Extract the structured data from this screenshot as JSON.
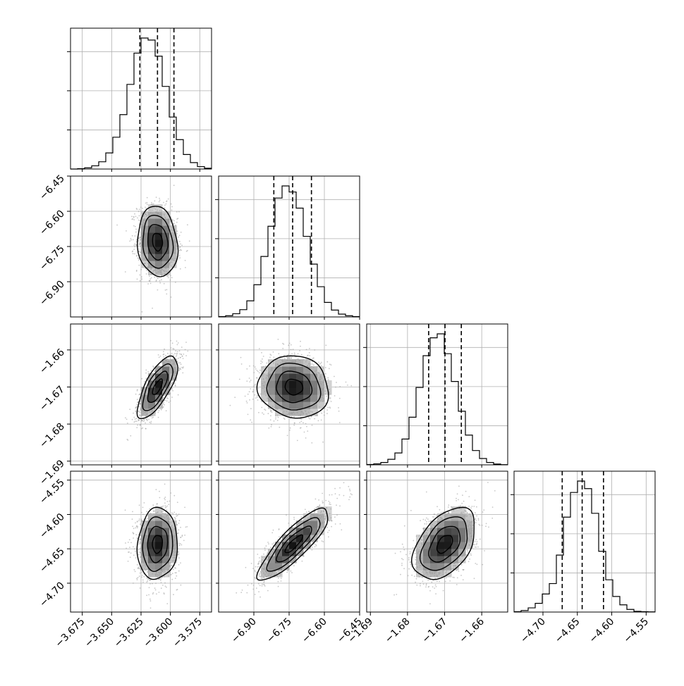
{
  "chart_data": {
    "type": "corner",
    "n_params": 4,
    "grid": true,
    "colors": {
      "line": "#000000",
      "scatter": "#9a9a9a",
      "grid": "#b0b0b0",
      "background": "#ffffff"
    },
    "params": [
      {
        "index": 0,
        "range": [
          -3.685,
          -3.565
        ],
        "ticks": [
          -3.675,
          -3.65,
          -3.625,
          -3.6,
          -3.575
        ],
        "tick_labels": [
          "−3.675",
          "−3.650",
          "−3.625",
          "−3.600",
          "−3.575"
        ],
        "quantiles": [
          -3.626,
          -3.611,
          -3.597
        ],
        "mean": -3.611,
        "sd": 0.0085
      },
      {
        "index": 1,
        "range": [
          -7.05,
          -6.45
        ],
        "ticks": [
          -6.9,
          -6.75,
          -6.6,
          -6.45
        ],
        "tick_labels": [
          "−6.90",
          "−6.75",
          "−6.60",
          "−6.45"
        ],
        "quantiles": [
          -6.815,
          -6.735,
          -6.655
        ],
        "mean": -6.73,
        "sd": 0.075
      },
      {
        "index": 2,
        "range": [
          -1.691,
          -1.653
        ],
        "ticks": [
          -1.69,
          -1.68,
          -1.67,
          -1.66
        ],
        "tick_labels": [
          "−1.69",
          "−1.68",
          "−1.67",
          "−1.66"
        ],
        "quantiles": [
          -1.6743,
          -1.6699,
          -1.6655
        ],
        "mean": -1.67,
        "sd": 0.0042
      },
      {
        "index": 3,
        "range": [
          -4.742,
          -4.537
        ],
        "ticks": [
          -4.7,
          -4.65,
          -4.6,
          -4.55
        ],
        "tick_labels": [
          "−4.70",
          "−4.65",
          "−4.60",
          "−4.55"
        ],
        "quantiles": [
          -4.672,
          -4.643,
          -4.612
        ],
        "mean": -4.643,
        "sd": 0.026
      }
    ],
    "histograms": [
      {
        "param": 0,
        "edges": [
          -3.685,
          -3.565
        ],
        "counts": [
          0,
          2,
          6,
          16,
          36,
          80,
          158,
          270,
          420,
          575,
          650,
          640,
          560,
          410,
          258,
          146,
          72,
          32,
          12,
          4
        ]
      },
      {
        "param": 1,
        "edges": [
          -7.05,
          -6.45
        ],
        "counts": [
          2,
          6,
          16,
          36,
          80,
          160,
          300,
          450,
          590,
          650,
          620,
          540,
          400,
          262,
          150,
          72,
          34,
          14,
          6,
          2
        ]
      },
      {
        "param": 2,
        "edges": [
          -1.691,
          -1.653
        ],
        "counts": [
          2,
          5,
          12,
          28,
          60,
          130,
          240,
          390,
          550,
          640,
          660,
          560,
          420,
          270,
          150,
          72,
          32,
          12,
          4,
          1
        ]
      },
      {
        "param": 3,
        "edges": [
          -4.742,
          -4.537
        ],
        "counts": [
          2,
          8,
          22,
          46,
          95,
          150,
          300,
          500,
          630,
          690,
          650,
          520,
          320,
          170,
          82,
          38,
          14,
          4,
          2,
          1
        ]
      }
    ],
    "pairs": [
      {
        "x": 0,
        "y": 1,
        "correlation": -0.12
      },
      {
        "x": 0,
        "y": 2,
        "correlation": 0.72
      },
      {
        "x": 1,
        "y": 2,
        "correlation": -0.08
      },
      {
        "x": 0,
        "y": 3,
        "correlation": 0.08
      },
      {
        "x": 1,
        "y": 3,
        "correlation": 0.85
      },
      {
        "x": 2,
        "y": 3,
        "correlation": 0.45
      }
    ],
    "density_levels_sigma": [
      0.5,
      1.0,
      1.5,
      2.0
    ]
  }
}
